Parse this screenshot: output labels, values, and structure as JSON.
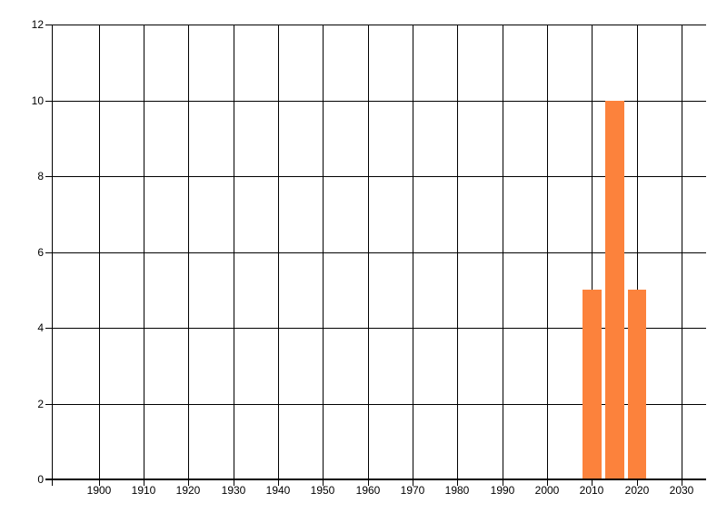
{
  "chart": {
    "background_color": "#ffffff",
    "bar_color": "#fc823c",
    "grid_color": "#000000",
    "axis_color": "#000000",
    "label_color": "#000000"
  },
  "chart_data": {
    "type": "bar",
    "title": "",
    "xlabel": "",
    "ylabel": "",
    "legend": "none",
    "grid": "both",
    "xlim": [
      1889.5,
      2035.5
    ],
    "ylim": [
      0,
      12
    ],
    "x_ticks": [
      1900,
      1910,
      1920,
      1930,
      1940,
      1950,
      1960,
      1970,
      1980,
      1990,
      2000,
      2010,
      2020,
      2030
    ],
    "x_tick_labels": [
      "1900",
      "1910",
      "1920",
      "1930",
      "1940",
      "1950",
      "1960",
      "1970",
      "1980",
      "1990",
      "2000",
      "2010",
      "2020",
      "2030"
    ],
    "y_ticks": [
      0,
      2,
      4,
      6,
      8,
      10,
      12
    ],
    "y_tick_labels": [
      "0",
      "2",
      "4",
      "6",
      "8",
      "10",
      "12"
    ],
    "bars": [
      {
        "bin_start": 2008,
        "bin_end": 2013,
        "value": 5
      },
      {
        "bin_start": 2013,
        "bin_end": 2018,
        "value": 10
      },
      {
        "bin_start": 2018,
        "bin_end": 2023,
        "value": 5
      }
    ]
  }
}
